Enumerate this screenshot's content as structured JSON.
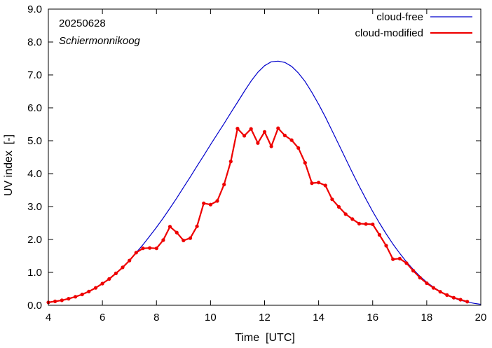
{
  "chart_data": {
    "type": "line",
    "date_label": "20250628",
    "location_label": "Schiermonnikoog",
    "xlabel": "Time  [UTC]",
    "ylabel": "UV index  [-]",
    "xlim": [
      4,
      20
    ],
    "ylim": [
      0,
      9
    ],
    "x_ticks": [
      4,
      6,
      8,
      10,
      12,
      14,
      16,
      18,
      20
    ],
    "y_ticks": [
      "0.0",
      "1.0",
      "2.0",
      "3.0",
      "4.0",
      "5.0",
      "6.0",
      "7.0",
      "8.0",
      "9.0"
    ],
    "legend_position": "top-right",
    "grid": false,
    "series": [
      {
        "name": "cloud-free",
        "color": "#0000cc",
        "marker": false,
        "points": [
          [
            4.0,
            0.09
          ],
          [
            4.25,
            0.12
          ],
          [
            4.5,
            0.15
          ],
          [
            4.75,
            0.2
          ],
          [
            5.0,
            0.26
          ],
          [
            5.25,
            0.33
          ],
          [
            5.5,
            0.42
          ],
          [
            5.75,
            0.53
          ],
          [
            6.0,
            0.66
          ],
          [
            6.25,
            0.8
          ],
          [
            6.5,
            0.97
          ],
          [
            6.75,
            1.15
          ],
          [
            7.0,
            1.36
          ],
          [
            7.25,
            1.6
          ],
          [
            7.5,
            1.84
          ],
          [
            7.75,
            2.1
          ],
          [
            8.0,
            2.37
          ],
          [
            8.25,
            2.65
          ],
          [
            8.5,
            2.95
          ],
          [
            8.75,
            3.26
          ],
          [
            9.0,
            3.58
          ],
          [
            9.25,
            3.9
          ],
          [
            9.5,
            4.23
          ],
          [
            9.75,
            4.55
          ],
          [
            10.0,
            4.88
          ],
          [
            10.25,
            5.2
          ],
          [
            10.5,
            5.52
          ],
          [
            10.75,
            5.85
          ],
          [
            11.0,
            6.17
          ],
          [
            11.25,
            6.5
          ],
          [
            11.5,
            6.81
          ],
          [
            11.75,
            7.08
          ],
          [
            12.0,
            7.28
          ],
          [
            12.25,
            7.4
          ],
          [
            12.5,
            7.42
          ],
          [
            12.75,
            7.38
          ],
          [
            13.0,
            7.26
          ],
          [
            13.25,
            7.06
          ],
          [
            13.5,
            6.8
          ],
          [
            13.75,
            6.47
          ],
          [
            14.0,
            6.11
          ],
          [
            14.25,
            5.72
          ],
          [
            14.5,
            5.3
          ],
          [
            14.75,
            4.88
          ],
          [
            15.0,
            4.45
          ],
          [
            15.25,
            4.03
          ],
          [
            15.5,
            3.62
          ],
          [
            15.75,
            3.23
          ],
          [
            16.0,
            2.85
          ],
          [
            16.25,
            2.5
          ],
          [
            16.5,
            2.17
          ],
          [
            16.75,
            1.86
          ],
          [
            17.0,
            1.58
          ],
          [
            17.25,
            1.32
          ],
          [
            17.5,
            1.09
          ],
          [
            17.75,
            0.88
          ],
          [
            18.0,
            0.7
          ],
          [
            18.25,
            0.55
          ],
          [
            18.5,
            0.42
          ],
          [
            18.75,
            0.31
          ],
          [
            19.0,
            0.22
          ],
          [
            19.25,
            0.15
          ],
          [
            19.5,
            0.1
          ],
          [
            19.75,
            0.06
          ],
          [
            20.0,
            0.03
          ]
        ]
      },
      {
        "name": "cloud-modified",
        "color": "#ee0000",
        "marker": true,
        "points": [
          [
            4.0,
            0.09
          ],
          [
            4.25,
            0.12
          ],
          [
            4.5,
            0.15
          ],
          [
            4.75,
            0.2
          ],
          [
            5.0,
            0.26
          ],
          [
            5.25,
            0.33
          ],
          [
            5.5,
            0.42
          ],
          [
            5.75,
            0.53
          ],
          [
            6.0,
            0.66
          ],
          [
            6.25,
            0.8
          ],
          [
            6.5,
            0.97
          ],
          [
            6.75,
            1.15
          ],
          [
            7.0,
            1.36
          ],
          [
            7.25,
            1.6
          ],
          [
            7.5,
            1.73
          ],
          [
            7.75,
            1.74
          ],
          [
            8.0,
            1.73
          ],
          [
            8.25,
            1.98
          ],
          [
            8.5,
            2.39
          ],
          [
            8.75,
            2.21
          ],
          [
            9.0,
            1.97
          ],
          [
            9.25,
            2.04
          ],
          [
            9.5,
            2.4
          ],
          [
            9.75,
            3.1
          ],
          [
            10.0,
            3.06
          ],
          [
            10.25,
            3.17
          ],
          [
            10.5,
            3.67
          ],
          [
            10.75,
            4.37
          ],
          [
            11.0,
            5.37
          ],
          [
            11.25,
            5.15
          ],
          [
            11.5,
            5.36
          ],
          [
            11.75,
            4.93
          ],
          [
            12.0,
            5.27
          ],
          [
            12.25,
            4.83
          ],
          [
            12.5,
            5.38
          ],
          [
            12.75,
            5.16
          ],
          [
            13.0,
            5.02
          ],
          [
            13.25,
            4.78
          ],
          [
            13.5,
            4.33
          ],
          [
            13.75,
            3.71
          ],
          [
            14.0,
            3.73
          ],
          [
            14.25,
            3.64
          ],
          [
            14.5,
            3.22
          ],
          [
            14.75,
            2.99
          ],
          [
            15.0,
            2.77
          ],
          [
            15.25,
            2.62
          ],
          [
            15.5,
            2.48
          ],
          [
            15.75,
            2.47
          ],
          [
            16.0,
            2.46
          ],
          [
            16.25,
            2.14
          ],
          [
            16.5,
            1.81
          ],
          [
            16.75,
            1.4
          ],
          [
            17.0,
            1.42
          ],
          [
            17.25,
            1.28
          ],
          [
            17.5,
            1.05
          ],
          [
            17.75,
            0.84
          ],
          [
            18.0,
            0.67
          ],
          [
            18.25,
            0.53
          ],
          [
            18.5,
            0.41
          ],
          [
            18.75,
            0.31
          ],
          [
            19.0,
            0.23
          ],
          [
            19.25,
            0.17
          ],
          [
            19.5,
            0.11
          ]
        ]
      }
    ]
  }
}
